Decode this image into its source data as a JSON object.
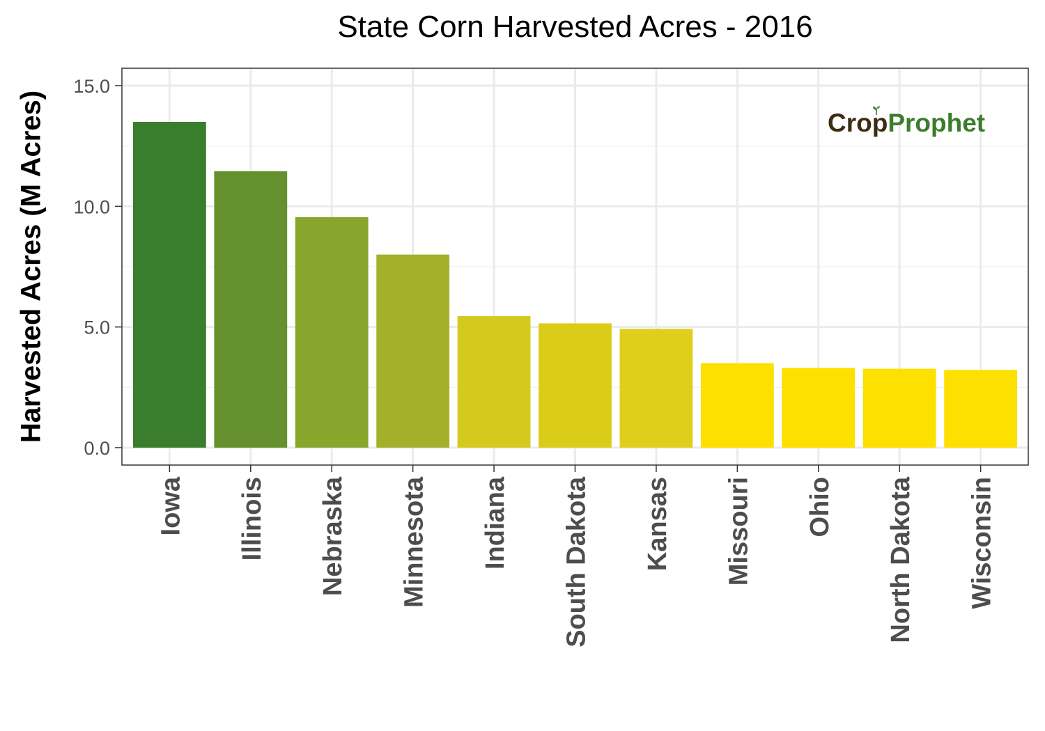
{
  "chart_data": {
    "type": "bar",
    "title": "State Corn Harvested Acres - 2016",
    "xlabel": "",
    "ylabel": "Harvested Acres (M Acres)",
    "ylim": [
      0,
      15.0
    ],
    "yticks": [
      "0.0",
      "5.0",
      "10.0",
      "15.0"
    ],
    "grid": true,
    "categories": [
      "Iowa",
      "Illinois",
      "Nebraska",
      "Minnesota",
      "Indiana",
      "South Dakota",
      "Kansas",
      "Missouri",
      "Ohio",
      "North Dakota",
      "Wisconsin"
    ],
    "values": [
      13.5,
      11.45,
      9.55,
      8.0,
      5.45,
      5.15,
      4.92,
      3.5,
      3.3,
      3.27,
      3.22
    ],
    "colors": [
      "#3a7d2c",
      "#65902e",
      "#88a52c",
      "#a5b02a",
      "#d4ca1e",
      "#dacc19",
      "#dfce1c",
      "#fde000",
      "#fde000",
      "#fde000",
      "#fde000"
    ]
  },
  "watermark": {
    "part1": "Crop",
    "part2": "Prophet",
    "icon": "sprout-icon"
  }
}
